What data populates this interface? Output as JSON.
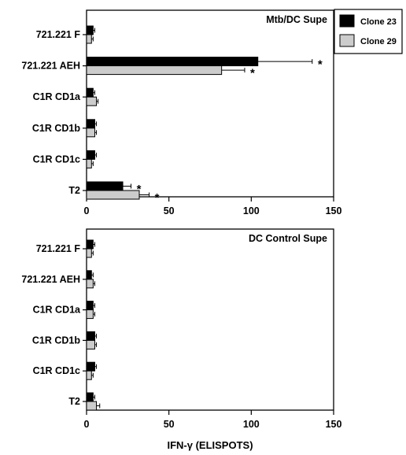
{
  "chart_data": [
    {
      "type": "bar",
      "orientation": "horizontal",
      "title": "Mtb/DC Supe",
      "categories": [
        "721.221 F",
        "721.221 AEH",
        "C1R CD1a",
        "C1R CD1b",
        "C1R CD1c",
        "T2"
      ],
      "series": [
        {
          "name": "Clone 23",
          "color": "#000000",
          "values": [
            4,
            104,
            4,
            5,
            5,
            22
          ],
          "errors": [
            1,
            33,
            1,
            1,
            1,
            5
          ],
          "significant": [
            false,
            true,
            false,
            false,
            false,
            true
          ]
        },
        {
          "name": "Clone 29",
          "color": "#cccccc",
          "values": [
            3,
            82,
            6,
            5,
            3,
            32
          ],
          "errors": [
            1,
            14,
            1,
            1,
            1,
            6
          ],
          "significant": [
            false,
            true,
            false,
            false,
            false,
            true
          ]
        }
      ],
      "xlim": [
        0,
        150
      ],
      "xticks": [
        0,
        50,
        100,
        150
      ],
      "significance_marker": "*"
    },
    {
      "type": "bar",
      "orientation": "horizontal",
      "title": "DC Control Supe",
      "categories": [
        "721.221 F",
        "721.221 AEH",
        "C1R CD1a",
        "C1R CD1b",
        "C1R CD1c",
        "T2"
      ],
      "series": [
        {
          "name": "Clone 23",
          "color": "#000000",
          "values": [
            4,
            3,
            4,
            5,
            5,
            4
          ],
          "errors": [
            1,
            1,
            1,
            1,
            1,
            1
          ]
        },
        {
          "name": "Clone 29",
          "color": "#cccccc",
          "values": [
            3,
            4,
            4,
            5,
            3,
            6
          ],
          "errors": [
            1,
            1,
            1,
            1,
            1,
            2
          ]
        }
      ],
      "xlim": [
        0,
        150
      ],
      "xticks": [
        0,
        50,
        100,
        150
      ]
    }
  ],
  "xlabel": "IFN-γ (ELISPOTS)",
  "legend": {
    "placement": "top-right",
    "entries": [
      {
        "label": "Clone 23",
        "color": "#000000"
      },
      {
        "label": "Clone 29",
        "color": "#cccccc"
      }
    ]
  }
}
